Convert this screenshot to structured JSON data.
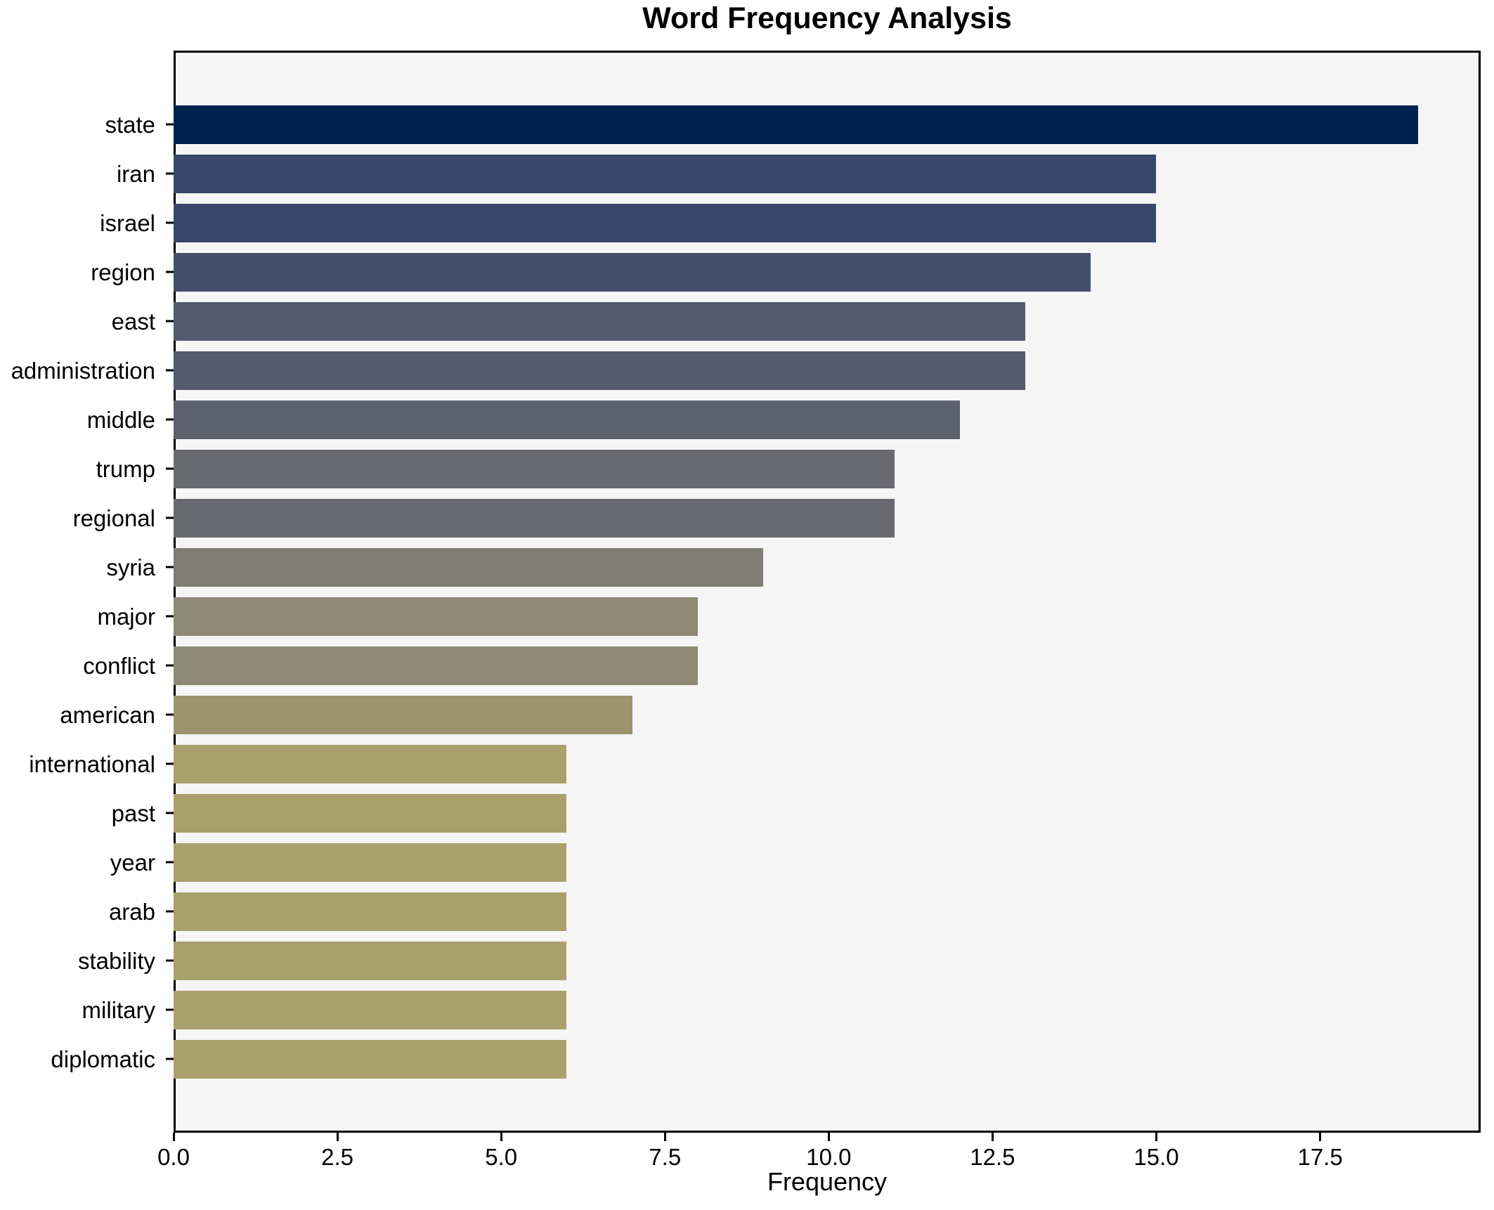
{
  "title": "Word Frequency Analysis",
  "xlabel": "Frequency",
  "chart_data": {
    "type": "bar",
    "orientation": "horizontal",
    "title": "Word Frequency Analysis",
    "xlabel": "Frequency",
    "ylabel": "",
    "grid": false,
    "legend_position": "none",
    "xlim": [
      0,
      19.95
    ],
    "xticks": [
      0.0,
      2.5,
      5.0,
      7.5,
      10.0,
      12.5,
      15.0,
      17.5
    ],
    "xtick_labels": [
      "0.0",
      "2.5",
      "5.0",
      "7.5",
      "10.0",
      "12.5",
      "15.0",
      "17.5"
    ],
    "categories": [
      "state",
      "iran",
      "israel",
      "region",
      "east",
      "administration",
      "middle",
      "trump",
      "regional",
      "syria",
      "major",
      "conflict",
      "american",
      "international",
      "past",
      "year",
      "arab",
      "stability",
      "military",
      "diplomatic"
    ],
    "values": [
      19,
      15,
      15,
      14,
      13,
      13,
      12,
      11,
      11,
      9,
      8,
      8,
      7,
      6,
      6,
      6,
      6,
      6,
      6,
      6
    ],
    "bar_colors": [
      "#00224e",
      "#38486b",
      "#38486b",
      "#444f6b",
      "#525a6d",
      "#525a6d",
      "#5d616e",
      "#696a70",
      "#696a70",
      "#7f7c73",
      "#8e8973",
      "#8e8973",
      "#9c946f",
      "#a9a06b",
      "#a9a06b",
      "#a9a06b",
      "#a9a06b",
      "#a9a06b",
      "#a9a06b",
      "#a9a06b"
    ],
    "colormap": "cividis"
  },
  "colors": {
    "figure_bg": "#ffffff",
    "axes_bg": "#f5f5f6",
    "spine": "#000000",
    "text": "#000000"
  }
}
